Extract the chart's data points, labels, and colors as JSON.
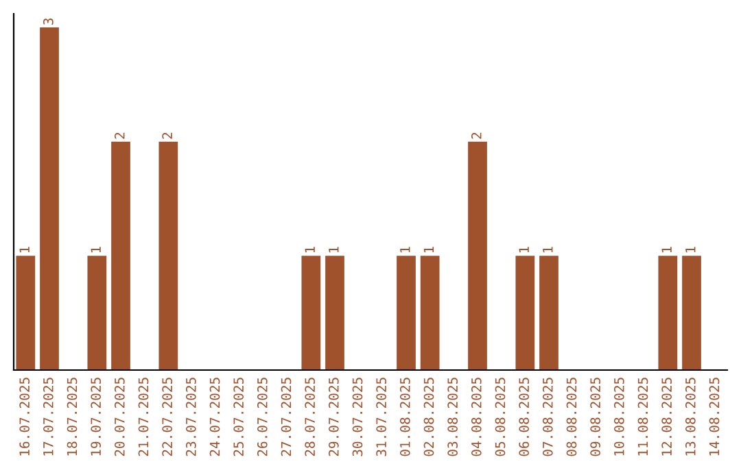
{
  "chart_data": {
    "type": "bar",
    "categories": [
      "16.07.2025",
      "17.07.2025",
      "18.07.2025",
      "19.07.2025",
      "20.07.2025",
      "21.07.2025",
      "22.07.2025",
      "23.07.2025",
      "24.07.2025",
      "25.07.2025",
      "26.07.2025",
      "27.07.2025",
      "28.07.2025",
      "29.07.2025",
      "30.07.2025",
      "31.07.2025",
      "01.08.2025",
      "02.08.2025",
      "03.08.2025",
      "04.08.2025",
      "05.08.2025",
      "06.08.2025",
      "07.08.2025",
      "08.08.2025",
      "09.08.2025",
      "10.08.2025",
      "11.08.2025",
      "12.08.2025",
      "13.08.2025",
      "14.08.2025"
    ],
    "values": [
      1,
      3,
      0,
      1,
      2,
      0,
      2,
      0,
      0,
      0,
      0,
      0,
      1,
      1,
      0,
      0,
      1,
      1,
      0,
      2,
      0,
      1,
      1,
      0,
      0,
      0,
      0,
      1,
      1,
      0
    ],
    "value_labels": [
      "1",
      "3",
      null,
      "1",
      "2",
      null,
      "2",
      null,
      null,
      null,
      null,
      null,
      "1",
      "1",
      null,
      null,
      "1",
      "1",
      null,
      "2",
      null,
      "1",
      "1",
      null,
      null,
      null,
      null,
      "1",
      "1",
      null
    ],
    "color": "#a0522d",
    "grid": false,
    "legend": false
  }
}
